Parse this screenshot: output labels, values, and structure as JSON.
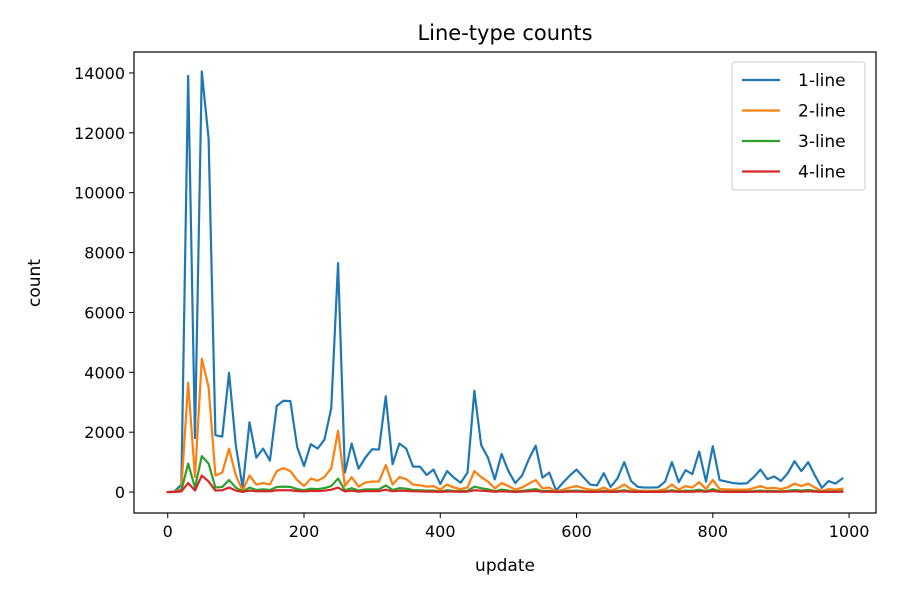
{
  "chart_data": {
    "type": "line",
    "title": "Line-type counts",
    "xlabel": "update",
    "ylabel": "count",
    "xlim": [
      -49.5,
      1039.5
    ],
    "ylim": [
      -700,
      14700
    ],
    "xticks": [
      0,
      200,
      400,
      600,
      800,
      1000
    ],
    "yticks": [
      0,
      2000,
      4000,
      6000,
      8000,
      10000,
      12000,
      14000
    ],
    "grid": false,
    "legend_position": "top-right",
    "x": [
      0,
      10,
      20,
      30,
      40,
      50,
      60,
      70,
      80,
      90,
      100,
      110,
      120,
      130,
      140,
      150,
      160,
      170,
      180,
      190,
      200,
      210,
      220,
      230,
      240,
      250,
      260,
      270,
      280,
      290,
      300,
      310,
      320,
      330,
      340,
      350,
      360,
      370,
      380,
      390,
      400,
      410,
      420,
      430,
      440,
      450,
      460,
      470,
      480,
      490,
      500,
      510,
      520,
      530,
      540,
      550,
      560,
      570,
      580,
      590,
      600,
      610,
      620,
      630,
      640,
      650,
      660,
      670,
      680,
      690,
      700,
      710,
      720,
      730,
      740,
      750,
      760,
      770,
      780,
      790,
      800,
      810,
      820,
      830,
      840,
      850,
      860,
      870,
      880,
      890,
      900,
      910,
      920,
      930,
      940,
      950,
      960,
      970,
      980,
      990
    ],
    "series": [
      {
        "name": "1-line",
        "color": "#1f77b4",
        "values": [
          0,
          20,
          250,
          13900,
          1800,
          14050,
          11800,
          1900,
          1850,
          3980,
          1550,
          150,
          2330,
          1150,
          1450,
          1050,
          2880,
          3050,
          3040,
          1500,
          870,
          1600,
          1450,
          1750,
          2800,
          7650,
          650,
          1620,
          780,
          1150,
          1430,
          1420,
          3200,
          930,
          1620,
          1450,
          850,
          850,
          570,
          750,
          270,
          700,
          480,
          310,
          650,
          3380,
          1570,
          1150,
          420,
          1270,
          700,
          300,
          550,
          1100,
          1550,
          480,
          650,
          50,
          310,
          550,
          750,
          500,
          250,
          220,
          630,
          170,
          450,
          1000,
          370,
          170,
          150,
          150,
          160,
          350,
          1000,
          330,
          730,
          600,
          1350,
          350,
          1530,
          400,
          350,
          300,
          280,
          290,
          500,
          750,
          430,
          520,
          370,
          630,
          1030,
          700,
          1000,
          550,
          140,
          370,
          280,
          450
        ]
      },
      {
        "name": "2-line",
        "color": "#ff7f0e",
        "values": [
          0,
          10,
          100,
          3650,
          500,
          4450,
          3500,
          550,
          650,
          1450,
          550,
          50,
          550,
          250,
          300,
          250,
          700,
          800,
          700,
          400,
          200,
          450,
          380,
          500,
          800,
          2050,
          200,
          500,
          180,
          320,
          350,
          350,
          900,
          250,
          500,
          430,
          250,
          230,
          180,
          200,
          80,
          250,
          150,
          100,
          150,
          700,
          500,
          350,
          120,
          300,
          200,
          80,
          150,
          280,
          400,
          120,
          150,
          20,
          80,
          150,
          200,
          130,
          80,
          60,
          150,
          50,
          120,
          250,
          100,
          50,
          40,
          40,
          50,
          90,
          250,
          80,
          200,
          150,
          330,
          100,
          400,
          100,
          90,
          80,
          80,
          80,
          130,
          200,
          120,
          140,
          100,
          160,
          280,
          200,
          280,
          150,
          40,
          100,
          80,
          110
        ]
      },
      {
        "name": "3-line",
        "color": "#2ca02c",
        "values": [
          0,
          5,
          50,
          950,
          150,
          1200,
          950,
          150,
          170,
          400,
          150,
          20,
          150,
          70,
          90,
          70,
          170,
          180,
          170,
          100,
          60,
          110,
          100,
          130,
          200,
          450,
          60,
          130,
          50,
          90,
          90,
          90,
          220,
          70,
          130,
          110,
          70,
          60,
          50,
          50,
          20,
          60,
          40,
          30,
          40,
          180,
          130,
          90,
          30,
          80,
          50,
          20,
          40,
          70,
          100,
          30,
          40,
          5,
          20,
          40,
          50,
          30,
          20,
          15,
          40,
          15,
          30,
          60,
          25,
          15,
          10,
          10,
          15,
          25,
          60,
          20,
          50,
          40,
          80,
          25,
          100,
          25,
          20,
          20,
          20,
          20,
          30,
          50,
          30,
          35,
          25,
          40,
          70,
          50,
          70,
          40,
          10,
          25,
          20,
          30
        ]
      },
      {
        "name": "4-line",
        "color": "#d62728",
        "values": [
          0,
          2,
          20,
          300,
          50,
          550,
          350,
          50,
          60,
          150,
          50,
          5,
          50,
          25,
          30,
          25,
          60,
          60,
          60,
          35,
          20,
          40,
          35,
          45,
          80,
          150,
          20,
          45,
          15,
          30,
          30,
          30,
          80,
          25,
          45,
          40,
          25,
          20,
          15,
          15,
          5,
          20,
          15,
          10,
          15,
          60,
          45,
          30,
          10,
          25,
          15,
          5,
          15,
          25,
          35,
          10,
          15,
          2,
          5,
          15,
          15,
          10,
          5,
          5,
          15,
          5,
          10,
          20,
          8,
          5,
          3,
          3,
          5,
          8,
          20,
          5,
          15,
          10,
          25,
          8,
          35,
          8,
          5,
          5,
          5,
          5,
          10,
          15,
          10,
          10,
          8,
          15,
          25,
          15,
          25,
          15,
          3,
          8,
          5,
          10
        ]
      }
    ]
  }
}
